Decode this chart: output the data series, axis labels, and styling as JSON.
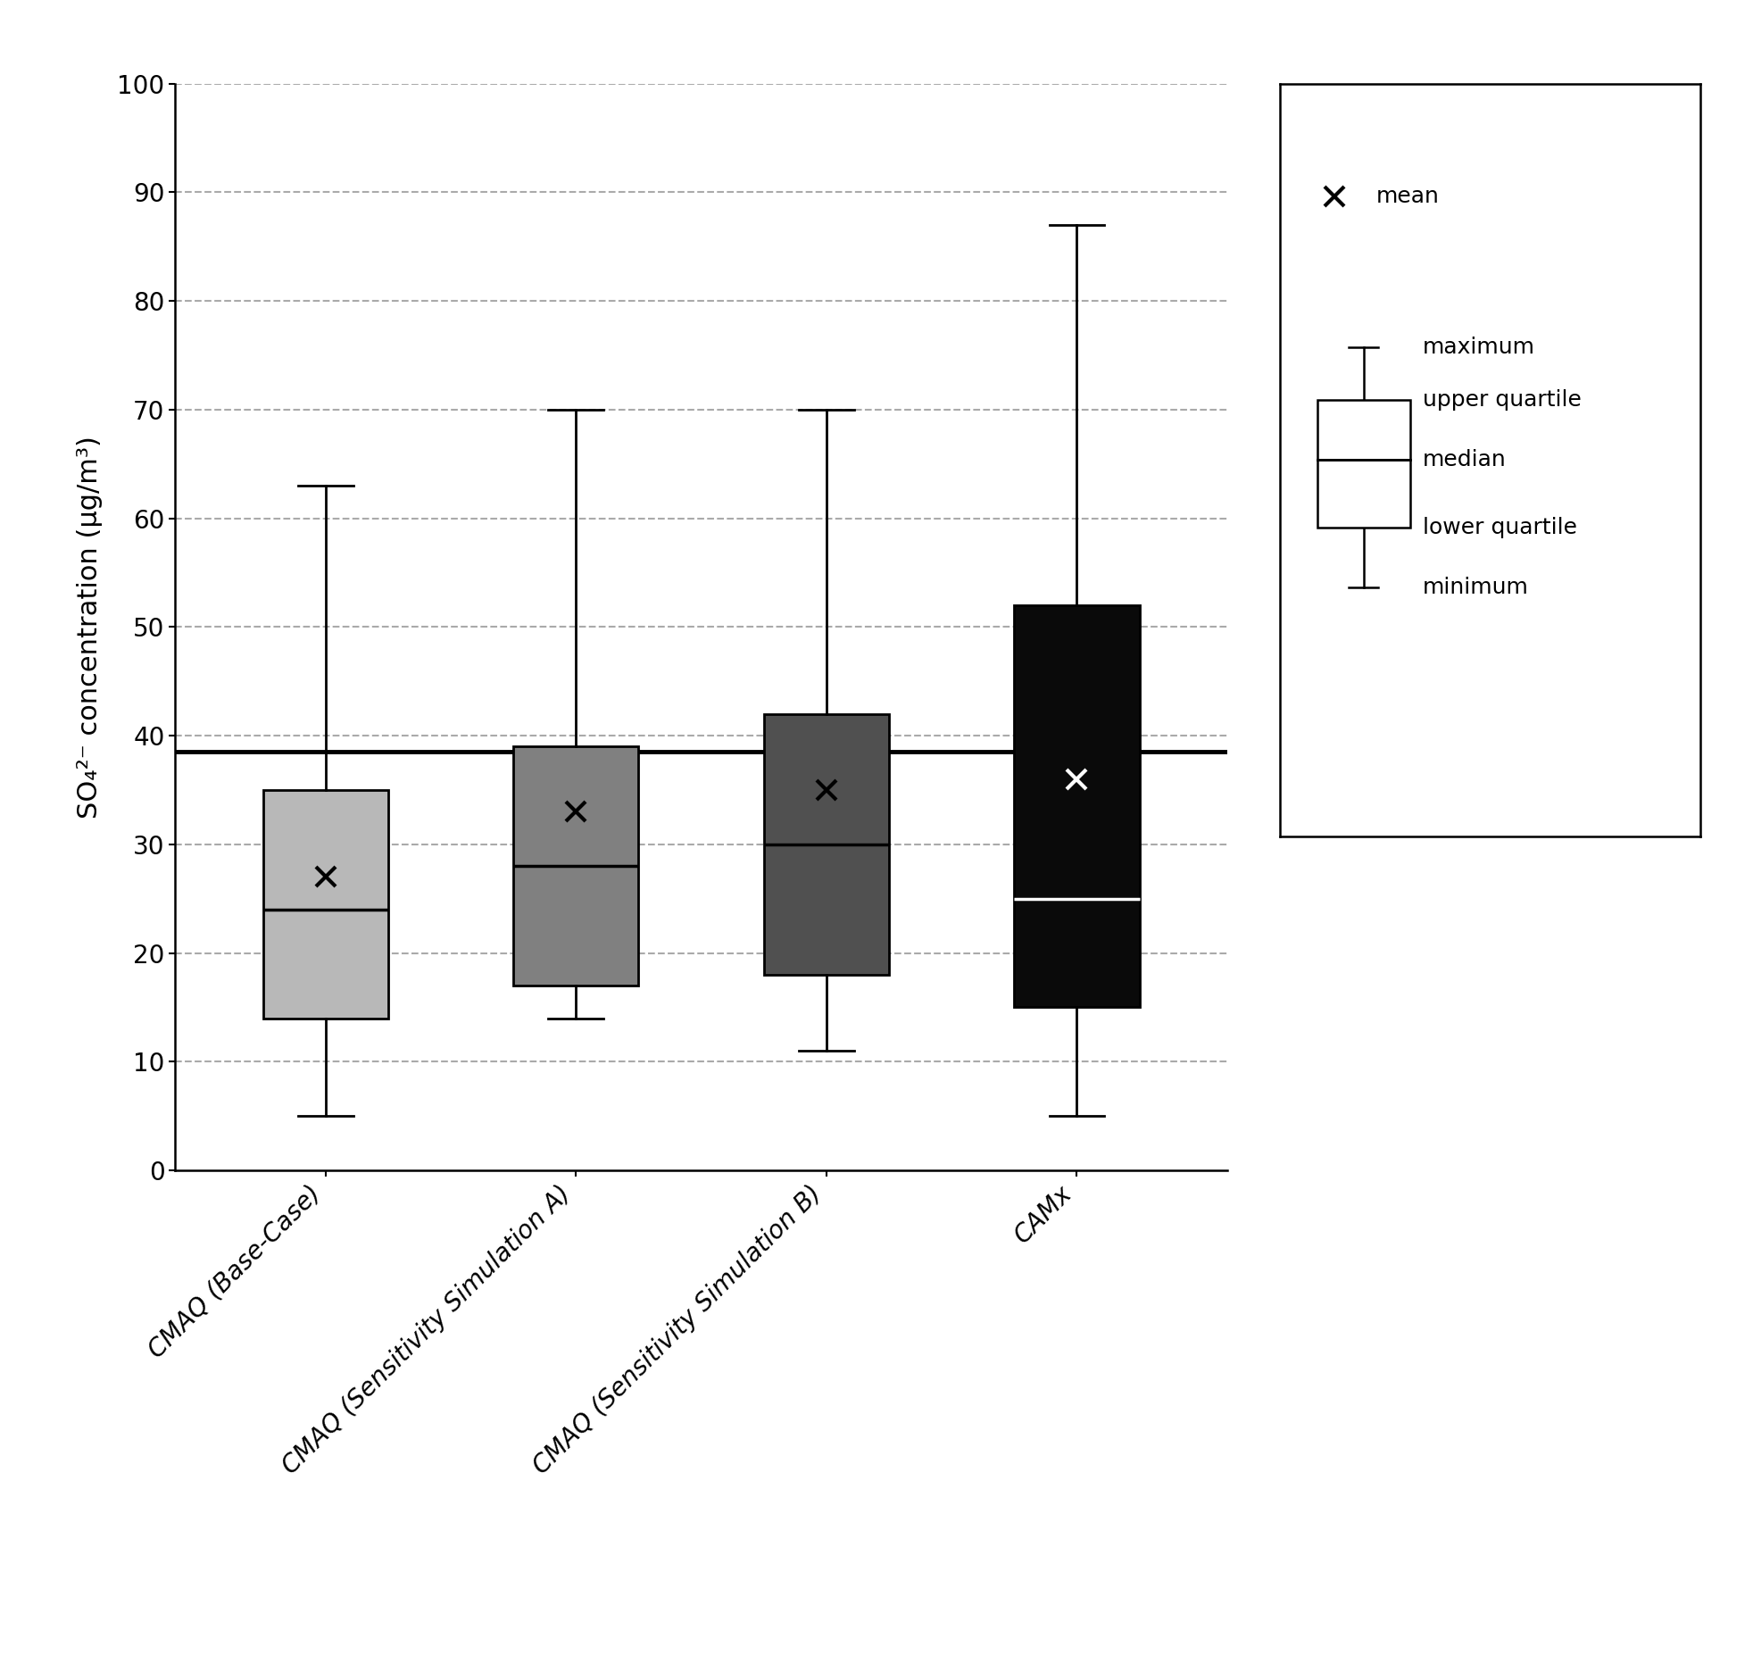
{
  "boxes": [
    {
      "label": "CMAQ (Base-Case)",
      "min": 5,
      "q1": 14,
      "median": 24,
      "q3": 35,
      "max": 63,
      "mean": 27,
      "color": "#b8b8b8",
      "mean_color": "black",
      "median_color": "black"
    },
    {
      "label": "CMAQ (Sensitivity Simulation A)",
      "min": 14,
      "q1": 17,
      "median": 28,
      "q3": 39,
      "max": 70,
      "mean": 33,
      "color": "#808080",
      "mean_color": "black",
      "median_color": "black"
    },
    {
      "label": "CMAQ (Sensitivity Simulation B)",
      "min": 11,
      "q1": 18,
      "median": 30,
      "q3": 42,
      "max": 70,
      "mean": 35,
      "color": "#505050",
      "mean_color": "black",
      "median_color": "black"
    },
    {
      "label": "CAMx",
      "min": 5,
      "q1": 15,
      "median": 25,
      "q3": 52,
      "max": 87,
      "mean": 36,
      "color": "#0a0a0a",
      "mean_color": "white",
      "median_color": "white"
    }
  ],
  "hline_value": 38.5,
  "ylabel": "SO₄²⁻ concentration (μg/m³)",
  "ylim": [
    0,
    100
  ],
  "yticks": [
    0,
    10,
    20,
    30,
    40,
    50,
    60,
    70,
    80,
    90,
    100
  ],
  "grid_ticks": [
    10,
    20,
    30,
    40,
    50,
    60,
    70,
    80,
    90,
    100
  ],
  "box_width": 0.5,
  "whisker_capsize": 0.22,
  "background_color": "#ffffff",
  "label_fontsize": 22,
  "tick_fontsize": 20,
  "legend_fontsize": 18,
  "xtick_fontsize": 20
}
